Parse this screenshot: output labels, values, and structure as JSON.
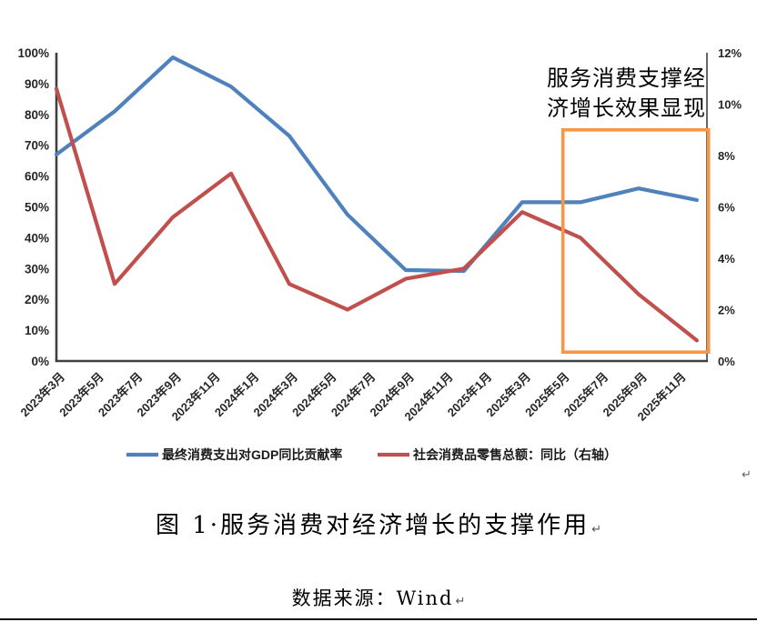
{
  "page": {
    "background": "#ffffff",
    "bottom_border_color": "#141414"
  },
  "figure": {
    "caption": "图 1·服务消费对经济增长的支撑作用",
    "source": "数据来源：Wind",
    "paragraph_mark": "↵"
  },
  "chart_data": {
    "type": "line",
    "title": "",
    "grid": false,
    "axis_color": "#404040",
    "tick_label_color": "#262626",
    "annotation": {
      "full_text": "服务消费支撑经济增长效果显现",
      "lines": [
        "服务消费支撑经",
        "济增长效果显现"
      ],
      "color": "#000000",
      "position": "top-right"
    },
    "x_axis": {
      "tick_labels": [
        "2023年3月",
        "2023年5月",
        "2023年7月",
        "2023年9月",
        "2023年11月",
        "2024年1月",
        "2024年3月",
        "2024年5月",
        "2024年7月",
        "2024年9月",
        "2024年11月",
        "2025年1月",
        "2025年3月",
        "2025年5月",
        "2025年7月",
        "2025年9月",
        "2025年11月"
      ],
      "tick_months_from_start": [
        0,
        2,
        4,
        6,
        8,
        10,
        12,
        14,
        16,
        18,
        20,
        22,
        24,
        26,
        28,
        30,
        32
      ],
      "label_rotation_deg": -45
    },
    "left_axis": {
      "min": 0,
      "max": 100,
      "step": 10,
      "format": "percent",
      "tick_labels": [
        "0%",
        "10%",
        "20%",
        "30%",
        "40%",
        "50%",
        "60%",
        "70%",
        "80%",
        "90%",
        "100%"
      ]
    },
    "right_axis": {
      "min": 0,
      "max": 12,
      "step": 2,
      "format": "percent",
      "tick_labels": [
        "0%",
        "2%",
        "4%",
        "6%",
        "8%",
        "10%",
        "12%"
      ]
    },
    "series": [
      {
        "name": "最终消费支出对GDP同比贡献率",
        "id": "gdp-contribution",
        "axis": "left",
        "color": "#4F81BD",
        "points": [
          {
            "month": "2023-03",
            "m": 0,
            "value": 67
          },
          {
            "month": "2023-06",
            "m": 3,
            "value": 81
          },
          {
            "month": "2023-09",
            "m": 6,
            "value": 98.5
          },
          {
            "month": "2023-12",
            "m": 9,
            "value": 89
          },
          {
            "month": "2024-03",
            "m": 12,
            "value": 73
          },
          {
            "month": "2024-06",
            "m": 15,
            "value": 47.5
          },
          {
            "month": "2024-09",
            "m": 18,
            "value": 29.5
          },
          {
            "month": "2024-12",
            "m": 21,
            "value": 29.2
          },
          {
            "month": "2025-03",
            "m": 24,
            "value": 51.5
          },
          {
            "month": "2025-06",
            "m": 27,
            "value": 51.5
          },
          {
            "month": "2025-09",
            "m": 30,
            "value": 56
          },
          {
            "month": "2025-12",
            "m": 33,
            "value": 52.2
          }
        ]
      },
      {
        "name": "社会消费品零售总额：同比（右轴）",
        "id": "retail-sales-yoy",
        "axis": "right",
        "color": "#C0504D",
        "points": [
          {
            "month": "2023-03",
            "m": 0,
            "value": 10.6
          },
          {
            "month": "2023-06",
            "m": 3,
            "value": 3.0
          },
          {
            "month": "2023-09",
            "m": 6,
            "value": 5.6
          },
          {
            "month": "2023-12",
            "m": 9,
            "value": 7.3
          },
          {
            "month": "2024-03",
            "m": 12,
            "value": 3.0
          },
          {
            "month": "2024-06",
            "m": 15,
            "value": 2.0
          },
          {
            "month": "2024-09",
            "m": 18,
            "value": 3.2
          },
          {
            "month": "2024-12",
            "m": 21,
            "value": 3.6
          },
          {
            "month": "2025-03",
            "m": 24,
            "value": 5.8
          },
          {
            "month": "2025-06",
            "m": 27,
            "value": 4.8
          },
          {
            "month": "2025-09",
            "m": 30,
            "value": 2.6
          },
          {
            "month": "2025-12",
            "m": 33,
            "value": 0.8
          }
        ]
      }
    ],
    "highlight_box": {
      "color": "#F79646",
      "month_start": 26.1,
      "month_end": 33.6,
      "right_axis_top": 9.0,
      "right_axis_bottom": 0.35
    },
    "legend": {
      "position": "bottom-center",
      "items": [
        "最终消费支出对GDP同比贡献率",
        "社会消费品零售总额：同比（右轴）"
      ]
    },
    "stray_paragraph_mark": "↵"
  }
}
